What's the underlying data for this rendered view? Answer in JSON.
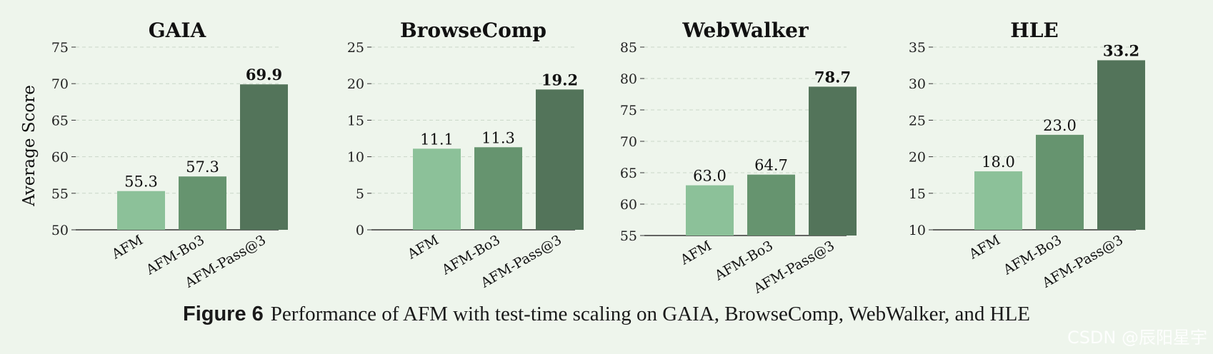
{
  "chart_data": [
    {
      "type": "bar",
      "title": "GAIA",
      "ylabel": "Average Score",
      "xlabel": "",
      "categories": [
        "AFM",
        "AFM-Bo3",
        "AFM-Pass@3"
      ],
      "values": [
        55.3,
        57.3,
        69.9
      ],
      "value_labels": [
        "55.3",
        "57.3",
        "69.9"
      ],
      "ylim": [
        50,
        75
      ],
      "yticks": [
        50,
        55,
        60,
        65,
        70,
        75
      ],
      "grid": true
    },
    {
      "type": "bar",
      "title": "BrowseComp",
      "ylabel": "",
      "xlabel": "",
      "categories": [
        "AFM",
        "AFM-Bo3",
        "AFM-Pass@3"
      ],
      "values": [
        11.1,
        11.3,
        19.2
      ],
      "value_labels": [
        "11.1",
        "11.3",
        "19.2"
      ],
      "ylim": [
        0,
        25
      ],
      "yticks": [
        0,
        5,
        10,
        15,
        20,
        25
      ],
      "grid": true
    },
    {
      "type": "bar",
      "title": "WebWalker",
      "ylabel": "",
      "xlabel": "",
      "categories": [
        "AFM",
        "AFM-Bo3",
        "AFM-Pass@3"
      ],
      "values": [
        63.0,
        64.7,
        78.7
      ],
      "value_labels": [
        "63.0",
        "64.7",
        "78.7"
      ],
      "ylim": [
        55,
        85
      ],
      "yticks": [
        55,
        60,
        65,
        70,
        75,
        80,
        85
      ],
      "grid": true
    },
    {
      "type": "bar",
      "title": "HLE",
      "ylabel": "",
      "xlabel": "",
      "categories": [
        "AFM",
        "AFM-Bo3",
        "AFM-Pass@3"
      ],
      "values": [
        18.0,
        23.0,
        33.2
      ],
      "value_labels": [
        "18.0",
        "23.0",
        "33.2"
      ],
      "ylim": [
        10,
        35
      ],
      "yticks": [
        10,
        15,
        20,
        25,
        30,
        35
      ],
      "grid": true
    }
  ],
  "bar_colors": [
    "#8cc199",
    "#66946f",
    "#53745a"
  ],
  "caption": {
    "label": "Figure 6",
    "text": "Performance of AFM with test-time scaling on GAIA, BrowseComp, WebWalker, and HLE"
  },
  "watermark": "CSDN @辰阳星宇"
}
